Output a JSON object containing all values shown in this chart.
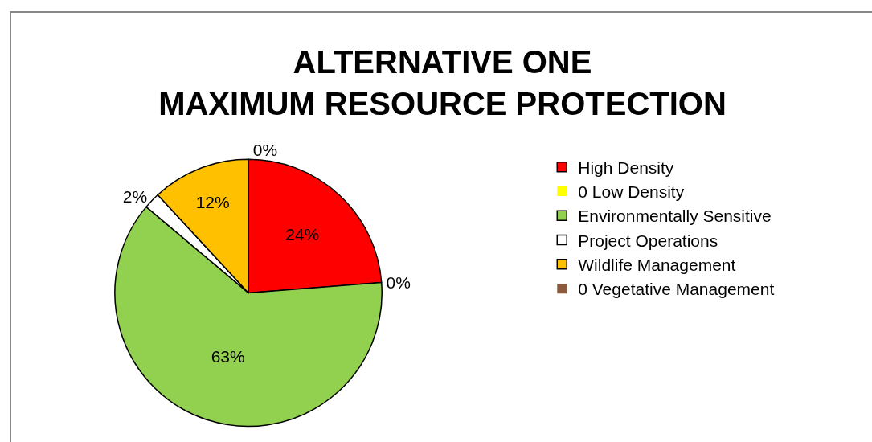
{
  "chart_data": {
    "type": "pie",
    "title": "ALTERNATIVE ONE\nMAXIMUM RESOURCE PROTECTION",
    "categories": [
      "High Density",
      "0 Low Density",
      "Environmentally Sensitive",
      "Project Operations",
      "Wildlife Management",
      "0 Vegetative Management"
    ],
    "values": [
      24,
      0,
      63,
      2,
      12,
      0
    ],
    "value_labels": [
      "24%",
      "0%",
      "63%",
      "2%",
      "12%",
      "0%"
    ],
    "colors": [
      "#ff0000",
      "#ffff00",
      "#92d050",
      "#ffffff",
      "#ffc000",
      "#8b5a3c"
    ],
    "legend": "right"
  }
}
